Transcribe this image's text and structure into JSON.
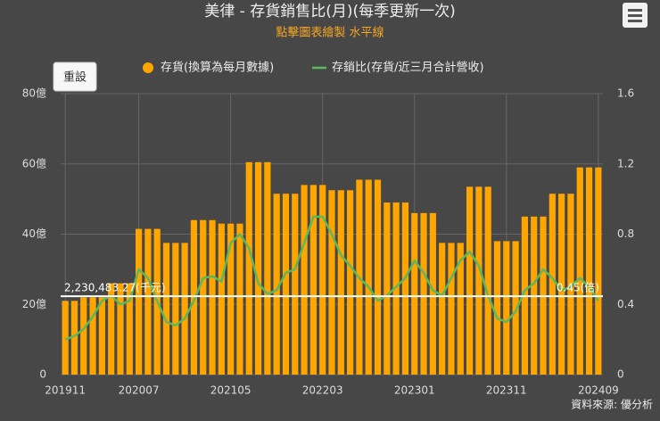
{
  "chart_data": {
    "type": "bar-line",
    "title": "美律 - 存貨銷售比(月)(每季更新一次)",
    "subtitle": "點擊圖表繪製 水平線",
    "reset_button": "重設",
    "source": "資料來源: 優分析",
    "categories": [
      "201911",
      null,
      null,
      null,
      null,
      null,
      null,
      null,
      "202007",
      null,
      null,
      null,
      null,
      null,
      null,
      null,
      null,
      null,
      "202105",
      null,
      null,
      null,
      null,
      null,
      null,
      null,
      null,
      null,
      "202203",
      null,
      null,
      null,
      null,
      null,
      null,
      null,
      null,
      null,
      "202301",
      null,
      null,
      null,
      null,
      null,
      null,
      null,
      null,
      null,
      "202311",
      null,
      null,
      null,
      null,
      null,
      null,
      null,
      null,
      null,
      "202409"
    ],
    "series": [
      {
        "name": "存貨(換算為每月數據)",
        "color": "#ffa500",
        "kind": "bar",
        "axis": "y",
        "values": [
          21,
          21,
          22,
          22,
          22,
          26,
          26,
          26,
          41.5,
          41.5,
          41.5,
          37.5,
          37.5,
          37.5,
          44,
          44,
          44,
          43,
          43,
          43,
          60.5,
          60.5,
          60.5,
          51.5,
          51.5,
          51.5,
          54,
          54,
          54,
          52.5,
          52.5,
          52.5,
          55.5,
          55.5,
          55.5,
          49,
          49,
          49,
          46,
          46,
          46,
          37.5,
          37.5,
          37.5,
          53.5,
          53.5,
          53.5,
          38,
          38,
          38,
          45,
          45,
          45,
          51.5,
          51.5,
          51.5,
          59,
          59,
          59
        ]
      },
      {
        "name": "存銷比(存貨/近三月合計營收)",
        "color": "#5cb85c",
        "kind": "line",
        "axis": "y2",
        "values": [
          0.2,
          0.22,
          0.26,
          0.33,
          0.42,
          0.45,
          0.4,
          0.42,
          0.6,
          0.55,
          0.42,
          0.3,
          0.28,
          0.32,
          0.42,
          0.55,
          0.56,
          0.53,
          0.75,
          0.8,
          0.72,
          0.52,
          0.46,
          0.48,
          0.58,
          0.6,
          0.75,
          0.9,
          0.9,
          0.8,
          0.68,
          0.62,
          0.55,
          0.5,
          0.42,
          0.45,
          0.5,
          0.55,
          0.65,
          0.58,
          0.48,
          0.45,
          0.55,
          0.65,
          0.7,
          0.62,
          0.45,
          0.32,
          0.3,
          0.36,
          0.48,
          0.52,
          0.6,
          0.55,
          0.48,
          0.5,
          0.55,
          0.5,
          0.42
        ]
      }
    ],
    "ylim": [
      0,
      80
    ],
    "yticks": [
      0,
      {
        "value": 20,
        "label": "20億"
      },
      {
        "value": 40,
        "label": "40億"
      },
      {
        "value": 60,
        "label": "60億"
      },
      {
        "value": 80,
        "label": "80億"
      }
    ],
    "y2lim": [
      0,
      1.6
    ],
    "y2ticks": [
      0,
      0.4,
      0.8,
      1.2,
      1.6
    ],
    "grid": true,
    "annotations": [
      {
        "axis": "y",
        "value": 22.3048327,
        "label": "2,230,483.27(千元)"
      },
      {
        "axis": "y2",
        "value": 0.45,
        "label": "0.45(倍)"
      }
    ]
  }
}
